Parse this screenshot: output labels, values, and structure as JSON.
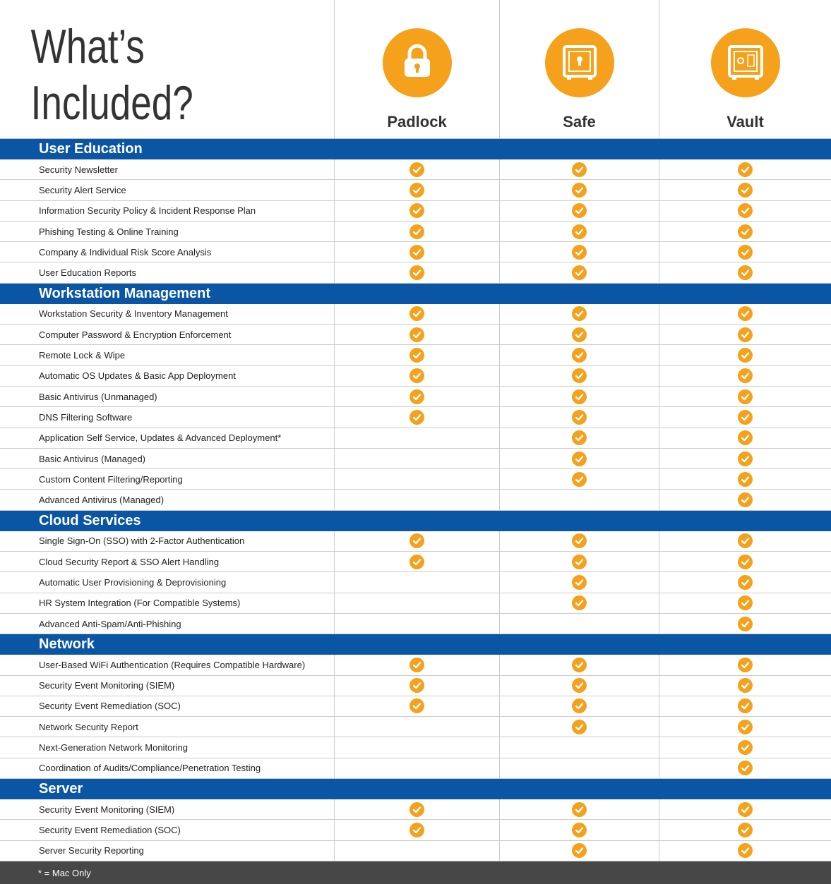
{
  "title_lines": [
    "What’s",
    "Included?"
  ],
  "plans": [
    "Padlock",
    "Safe",
    "Vault"
  ],
  "sections": [
    {
      "name": "User Education",
      "rows": [
        {
          "feature": "Security Newsletter",
          "included": [
            true,
            true,
            true
          ]
        },
        {
          "feature": "Security Alert Service",
          "included": [
            true,
            true,
            true
          ]
        },
        {
          "feature": "Information Security Policy & Incident Response Plan",
          "included": [
            true,
            true,
            true
          ]
        },
        {
          "feature": "Phishing Testing & Online Training",
          "included": [
            true,
            true,
            true
          ]
        },
        {
          "feature": "Company & Individual Risk Score Analysis",
          "included": [
            true,
            true,
            true
          ]
        },
        {
          "feature": "User Education Reports",
          "included": [
            true,
            true,
            true
          ]
        }
      ]
    },
    {
      "name": "Workstation Management",
      "rows": [
        {
          "feature": "Workstation Security & Inventory Management",
          "included": [
            true,
            true,
            true
          ]
        },
        {
          "feature": "Computer Password & Encryption Enforcement",
          "included": [
            true,
            true,
            true
          ]
        },
        {
          "feature": "Remote Lock & Wipe",
          "included": [
            true,
            true,
            true
          ]
        },
        {
          "feature": "Automatic OS Updates & Basic App Deployment",
          "included": [
            true,
            true,
            true
          ]
        },
        {
          "feature": "Basic Antivirus (Unmanaged)",
          "included": [
            true,
            true,
            true
          ]
        },
        {
          "feature": "DNS Filtering Software",
          "included": [
            true,
            true,
            true
          ]
        },
        {
          "feature": "Application Self Service, Updates & Advanced Deployment*",
          "included": [
            false,
            true,
            true
          ]
        },
        {
          "feature": "Basic Antivirus (Managed)",
          "included": [
            false,
            true,
            true
          ]
        },
        {
          "feature": "Custom Content Filtering/Reporting",
          "included": [
            false,
            true,
            true
          ]
        },
        {
          "feature": "Advanced Antivirus (Managed)",
          "included": [
            false,
            false,
            true
          ]
        }
      ]
    },
    {
      "name": "Cloud Services",
      "rows": [
        {
          "feature": "Single Sign-On (SSO) with 2-Factor Authentication",
          "included": [
            true,
            true,
            true
          ]
        },
        {
          "feature": "Cloud Security Report & SSO Alert Handling",
          "included": [
            true,
            true,
            true
          ]
        },
        {
          "feature": "Automatic User Provisioning & Deprovisioning",
          "included": [
            false,
            true,
            true
          ]
        },
        {
          "feature": "HR System Integration (For Compatible Systems)",
          "included": [
            false,
            true,
            true
          ]
        },
        {
          "feature": "Advanced Anti-Spam/Anti-Phishing",
          "included": [
            false,
            false,
            true
          ]
        }
      ]
    },
    {
      "name": "Network",
      "rows": [
        {
          "feature": "User-Based WiFi Authentication (Requires Compatible Hardware)",
          "included": [
            true,
            true,
            true
          ]
        },
        {
          "feature": "Security Event Monitoring (SIEM)",
          "included": [
            true,
            true,
            true
          ]
        },
        {
          "feature": "Security Event Remediation (SOC)",
          "included": [
            true,
            true,
            true
          ]
        },
        {
          "feature": "Network Security Report",
          "included": [
            false,
            true,
            true
          ]
        },
        {
          "feature": "Next-Generation Network Monitoring",
          "included": [
            false,
            false,
            true
          ]
        },
        {
          "feature": "Coordination of Audits/Compliance/Penetration Testing",
          "included": [
            false,
            false,
            true
          ]
        }
      ]
    },
    {
      "name": "Server",
      "rows": [
        {
          "feature": "Security Event Monitoring (SIEM)",
          "included": [
            true,
            true,
            true
          ]
        },
        {
          "feature": "Security Event Remediation (SOC)",
          "included": [
            true,
            true,
            true
          ]
        },
        {
          "feature": "Server Security Reporting",
          "included": [
            false,
            true,
            true
          ]
        }
      ]
    }
  ],
  "footnote": "* = Mac Only"
}
